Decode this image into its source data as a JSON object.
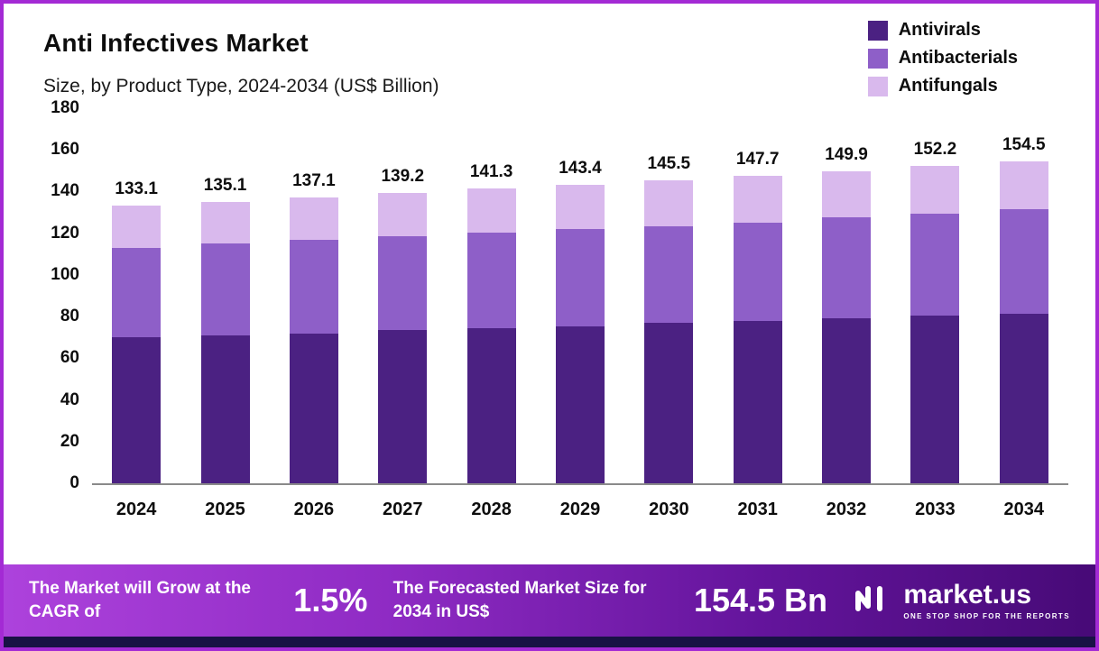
{
  "header": {
    "title": "Anti Infectives Market",
    "subtitle": "Size, by Product Type, 2024-2034 (US$ Billion)"
  },
  "legend": [
    {
      "label": "Antivirals",
      "color": "#4b2182"
    },
    {
      "label": "Antibacterials",
      "color": "#8e5fc8"
    },
    {
      "label": "Antifungals",
      "color": "#d9b9ed"
    }
  ],
  "chart_data": {
    "type": "bar",
    "stacked": true,
    "title": "Anti Infectives Market",
    "subtitle": "Size, by Product Type, 2024-2034 (US$ Billion)",
    "categories": [
      "2024",
      "2025",
      "2026",
      "2027",
      "2028",
      "2029",
      "2030",
      "2031",
      "2032",
      "2033",
      "2034"
    ],
    "series": [
      {
        "name": "Antivirals",
        "color": "#4b2182",
        "values": [
          70,
          71,
          72,
          73.5,
          74.5,
          75.5,
          77,
          78,
          79,
          80.5,
          81.5
        ]
      },
      {
        "name": "Antibacterials",
        "color": "#8e5fc8",
        "values": [
          43,
          44,
          45,
          45,
          46,
          46.5,
          46.5,
          47,
          48.5,
          49,
          50
        ]
      },
      {
        "name": "Antifungals",
        "color": "#d9b9ed",
        "values": [
          20.1,
          20.1,
          20.1,
          20.7,
          20.8,
          21.4,
          22,
          22.7,
          22.4,
          22.7,
          23
        ]
      }
    ],
    "totals": [
      "133.1",
      "135.1",
      "137.1",
      "139.2",
      "141.3",
      "143.4",
      "145.5",
      "147.7",
      "149.9",
      "152.2",
      "154.5"
    ],
    "ylim": [
      0,
      180
    ],
    "yticks": [
      0,
      20,
      40,
      60,
      80,
      100,
      120,
      140,
      160,
      180
    ],
    "xlabel": "",
    "ylabel": "",
    "grid": false,
    "legend_position": "top-right"
  },
  "footer": {
    "cagr_label": "The Market will Grow at the CAGR of",
    "cagr_value": "1.5%",
    "forecast_label": "The Forecasted Market Size for 2034 in US$",
    "forecast_value": "154.5 Bn",
    "brand": "market.us",
    "brand_tagline": "ONE STOP SHOP FOR THE REPORTS"
  },
  "colors": {
    "frame_border": "#a32ad4",
    "footer_gradient_start": "#ad42dc",
    "footer_gradient_end": "#470a77",
    "bottom_strip": "#191245"
  }
}
